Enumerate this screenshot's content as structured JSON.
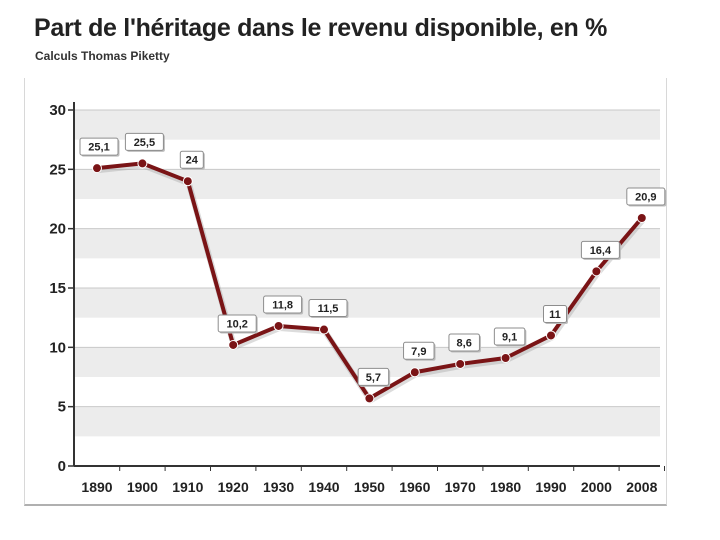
{
  "header": {
    "title": "Part de l'héritage dans le revenu disponible, en %",
    "subtitle": "Calculs Thomas Piketty"
  },
  "colors": {
    "line": "#7a1416",
    "band": "#ececec",
    "grid": "#c9c9c9",
    "axis": "#333333"
  },
  "chart_data": {
    "type": "line",
    "title": "Part de l'héritage dans le revenu disponible, en %",
    "subtitle": "Calculs Thomas Piketty",
    "categories": [
      "1890",
      "1900",
      "1910",
      "1920",
      "1930",
      "1940",
      "1950",
      "1960",
      "1970",
      "1980",
      "1990",
      "2000",
      "2008"
    ],
    "series": [
      {
        "values": [
          25.1,
          25.5,
          24,
          10.2,
          11.8,
          11.5,
          5.7,
          7.9,
          8.6,
          9.1,
          11,
          16.4,
          20.9
        ],
        "labels": [
          "25,1",
          "25,5",
          "24",
          "10,2",
          "11,8",
          "11,5",
          "5,7",
          "7,9",
          "8,6",
          "9,1",
          "11",
          "16,4",
          "20,9"
        ]
      }
    ],
    "yticks": [
      "0",
      "5",
      "10",
      "15",
      "20",
      "25",
      "30"
    ],
    "ylim": [
      0,
      30
    ],
    "grid": true,
    "xlabel": "",
    "ylabel": ""
  }
}
